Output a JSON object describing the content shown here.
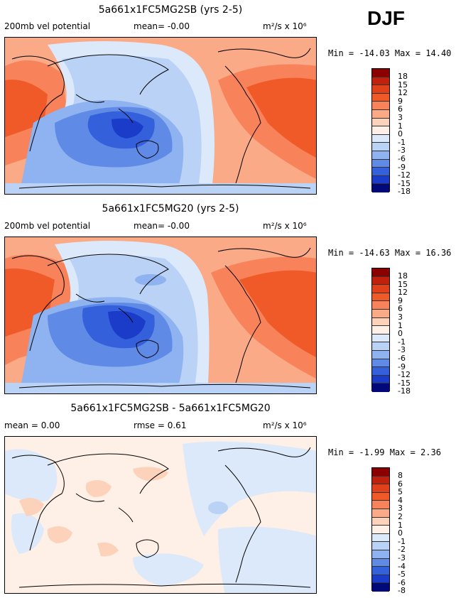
{
  "season": "DJF",
  "panels": [
    {
      "title": "5a661x1FC5MG2SB (yrs 2-5)",
      "left_label": "200mb vel potential",
      "center_label": "mean=  -0.00",
      "units": "m²/s x 10⁶",
      "minmax": "Min = -14.03 Max =  14.40",
      "levels": [
        "18",
        "15",
        "12",
        "9",
        "6",
        "3",
        "1",
        "0",
        "-1",
        "-3",
        "-6",
        "-9",
        "-12",
        "-15",
        "-18"
      ]
    },
    {
      "title": "5a661x1FC5MG20 (yrs 2-5)",
      "left_label": "200mb vel potential",
      "center_label": "mean=  -0.00",
      "units": "m²/s x 10⁶",
      "minmax": "Min = -14.63 Max =  16.36",
      "levels": [
        "18",
        "15",
        "12",
        "9",
        "6",
        "3",
        "1",
        "0",
        "-1",
        "-3",
        "-6",
        "-9",
        "-12",
        "-15",
        "-18"
      ]
    },
    {
      "title": "5a661x1FC5MG2SB - 5a661x1FC5MG20",
      "left_label": "mean =  0.00",
      "center_label": "rmse =  0.61",
      "units": "m²/s x 10⁶",
      "minmax": "Min = -1.99 Max =  2.36",
      "levels": [
        "8",
        "6",
        "5",
        "4",
        "3",
        "2",
        "1",
        "0",
        "-1",
        "-2",
        "-3",
        "-4",
        "-5",
        "-6",
        "-8"
      ]
    }
  ],
  "colors": [
    "#8b0000",
    "#c0200c",
    "#e0401a",
    "#f05a28",
    "#f8825a",
    "#fbaa88",
    "#fdd2bb",
    "#fef0e6",
    "#dce9fa",
    "#b9d2f6",
    "#8fb2f0",
    "#5f8ae6",
    "#3560dc",
    "#1a3cc8",
    "#0a1aa8",
    "#00087a"
  ]
}
